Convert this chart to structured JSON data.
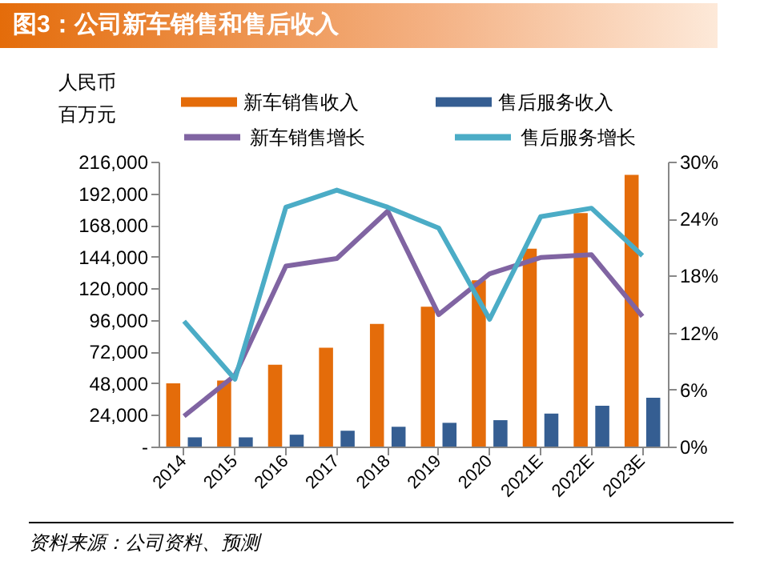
{
  "chart_data": {
    "type": "bar",
    "title": "图3：公司新车销售和售后收入",
    "ylabel": "人民币百万元",
    "categories": [
      "2014",
      "2015",
      "2016",
      "2017",
      "2018",
      "2019",
      "2020",
      "2021E",
      "2022E",
      "2023E"
    ],
    "series": [
      {
        "name": "新车销售收入",
        "color": "#e46c0a",
        "values": [
          48000,
          50000,
          62000,
          75000,
          93000,
          106000,
          126000,
          150000,
          177000,
          206000
        ]
      },
      {
        "name": "售后服务收入",
        "color": "#355e92",
        "values": [
          7000,
          7000,
          9000,
          12000,
          15000,
          18000,
          20000,
          25000,
          31000,
          37000
        ]
      },
      {
        "name": "新车销售增长",
        "type": "line",
        "axis": "y2",
        "color": "#8064a2",
        "values": [
          3.2,
          7.5,
          19.0,
          19.8,
          24.8,
          13.9,
          18.2,
          19.9,
          20.2,
          13.7
        ]
      },
      {
        "name": "售后服务增长",
        "type": "line",
        "axis": "y2",
        "color": "#4bacc6",
        "values": [
          13.2,
          7.1,
          25.2,
          27.0,
          25.2,
          23.0,
          13.4,
          24.2,
          25.1,
          20.1
        ]
      }
    ],
    "ylim": [
      0,
      216000
    ],
    "yticks": [
      {
        "value": 0,
        "label": "-"
      },
      {
        "value": 24000,
        "label": "24,000"
      },
      {
        "value": 48000,
        "label": "48,000"
      },
      {
        "value": 72000,
        "label": "72,000"
      },
      {
        "value": 96000,
        "label": "96,000"
      },
      {
        "value": 120000,
        "label": "120,000"
      },
      {
        "value": 144000,
        "label": "144,000"
      },
      {
        "value": 168000,
        "label": "168,000"
      },
      {
        "value": 192000,
        "label": "192,000"
      },
      {
        "value": 216000,
        "label": "216,000"
      }
    ],
    "y2lim": [
      0,
      30
    ],
    "y2ticks": [
      {
        "value": 0,
        "label": "0%"
      },
      {
        "value": 6,
        "label": "6%"
      },
      {
        "value": 12,
        "label": "12%"
      },
      {
        "value": 18,
        "label": "18%"
      },
      {
        "value": 24,
        "label": "24%"
      },
      {
        "value": 30,
        "label": "30%"
      }
    ],
    "legend": "top",
    "grid": false,
    "marker": "none",
    "line_style": "solid",
    "annotations": [
      "资料来源：公司资料、预测"
    ]
  }
}
